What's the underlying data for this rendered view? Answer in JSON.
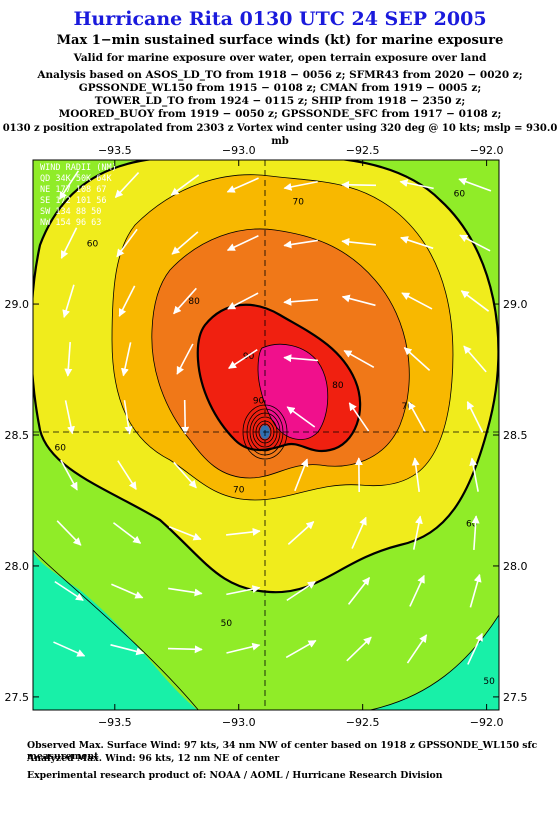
{
  "title": "Hurricane Rita 0130 UTC 24 SEP 2005",
  "subtitle": "Max 1−min sustained surface winds (kt) for marine exposure",
  "valid_line": "Valid for marine exposure over water, open terrain exposure over land",
  "analysis_lines": [
    "Analysis based on  ASOS_LD_TO from 1918 − 0056 z;  SFMR43 from 2020 − 0020 z;",
    "GPSSONDE_WL150 from 1915 − 0108 z;  CMAN from 1919 − 0005 z;",
    "TOWER_LD_TO from 1924 − 0115 z;  SHIP from 1918 − 2350 z;",
    "MOORED_BUOY from 1919 − 0050 z;  GPSSONDE_SFC from 1917 − 0108 z;"
  ],
  "position_line": "0130 z position extrapolated from 2303 z Vortex wind center using 320 deg @ 10 kts; mslp = 930.0 mb",
  "wind_radii": {
    "header": "WIND RADII (NM)",
    "cols": "QD 34K 50K 64K",
    "rows": [
      "NE 177 108  67",
      "SE 172 101  56",
      "SW 134  88  50",
      "NW 154  96  63"
    ]
  },
  "map": {
    "lon_ticks": [
      "−93.5",
      "−93.0",
      "−92.5",
      "−92.0"
    ],
    "lon_values": [
      -93.5,
      -93.0,
      -92.5,
      -92.0
    ],
    "lat_ticks": [
      "29.0",
      "28.5",
      "28.0",
      "27.5"
    ],
    "lat_values": [
      29.0,
      28.5,
      28.0,
      27.5
    ],
    "lon_range": [
      -93.83,
      -91.95
    ],
    "lat_range": [
      27.45,
      29.55
    ],
    "center": {
      "lon": -92.9,
      "lat": 28.47
    },
    "contour_labels": [
      {
        "text": "70",
        "lon": -92.76,
        "lat": 29.38
      },
      {
        "text": "80",
        "lon": -93.18,
        "lat": 29.0
      },
      {
        "text": "90",
        "lon": -92.96,
        "lat": 28.79
      },
      {
        "text": "90",
        "lon": -92.92,
        "lat": 28.62
      },
      {
        "text": "80",
        "lon": -92.6,
        "lat": 28.68
      },
      {
        "text": "70",
        "lon": -92.32,
        "lat": 28.6
      },
      {
        "text": "60",
        "lon": -93.72,
        "lat": 28.44
      },
      {
        "text": "60",
        "lon": -92.11,
        "lat": 29.41
      },
      {
        "text": "60",
        "lon": -92.06,
        "lat": 28.15
      },
      {
        "text": "50",
        "lon": -91.99,
        "lat": 27.55
      },
      {
        "text": "60",
        "lon": -93.59,
        "lat": 29.22
      },
      {
        "text": "70",
        "lon": -93.0,
        "lat": 28.28
      },
      {
        "text": "50",
        "lon": -93.05,
        "lat": 27.77
      }
    ]
  },
  "colors": {
    "cat40_50": "#18f0a8",
    "cat50_60": "#90ec28",
    "cat60_70": "#f0ec1c",
    "cat70_80": "#f8b800",
    "cat80_90": "#f07818",
    "cat90_100": "#f02010",
    "cat100plus": "#f0108c"
  },
  "footer": {
    "observed": "Observed Max. Surface Wind: 97 kts, 34 nm NW of center based on 1918 z GPSSONDE_WL150 sfc measurement",
    "analyzed": "Analyzed Max. Wind: 96 kts, 12 nm NE of center",
    "credit": "Experimental research product of:  NOAA / AOML / Hurricane Research Division"
  }
}
